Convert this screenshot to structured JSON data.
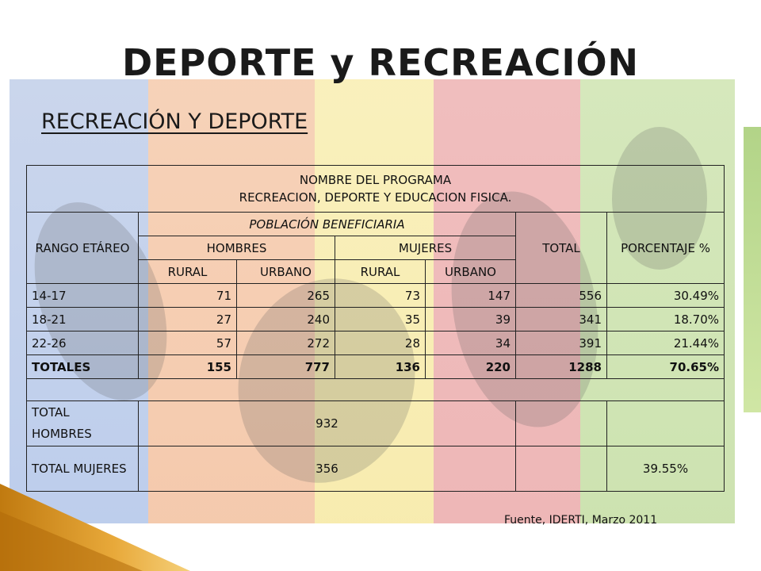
{
  "slide": {
    "title": "DEPORTE  y RECREACIÓN",
    "subtitle": "RECREACIÓN Y DEPORTE",
    "source": "Fuente, IDERTI, Marzo 2011"
  },
  "table": {
    "program_header_line1": "NOMBRE DEL PROGRAMA",
    "program_header_line2": "RECREACION, DEPORTE Y EDUCACION FISICA.",
    "col_rango": "RANGO ETÁREO",
    "col_poblacion": "POBLACIÓN BENEFICIARIA",
    "col_total": "TOTAL",
    "col_porcentaje": "PORCENTAJE %",
    "col_hombres": "HOMBRES",
    "col_mujeres": "MUJERES",
    "sub_rural_h": "RURAL",
    "sub_urbano_h": "URBANO",
    "sub_rural_m": "RURAL",
    "sub_urbano_m": "URBANO",
    "rows": [
      {
        "rango": "14-17",
        "h_rural": "71",
        "h_urbano": "265",
        "m_rural": "73",
        "m_urbano": "147",
        "total": "556",
        "porcentaje": "30.49%"
      },
      {
        "rango": "18-21",
        "h_rural": "27",
        "h_urbano": "240",
        "m_rural": "35",
        "m_urbano": "39",
        "total": "341",
        "porcentaje": "18.70%"
      },
      {
        "rango": "22-26",
        "h_rural": "57",
        "h_urbano": "272",
        "m_rural": "28",
        "m_urbano": "34",
        "total": "391",
        "porcentaje": "21.44%"
      }
    ],
    "totales": {
      "label": "TOTALES",
      "h_rural": "155",
      "h_urbano": "777",
      "m_rural": "136",
      "m_urbano": "220",
      "total": "1288",
      "porcentaje": "70.65%"
    },
    "total_hombres": {
      "label": "TOTAL HOMBRES",
      "value": "932",
      "porcentaje": ""
    },
    "total_mujeres": {
      "label": "TOTAL MUJERES",
      "value": "356",
      "porcentaje": "39.55%"
    }
  }
}
